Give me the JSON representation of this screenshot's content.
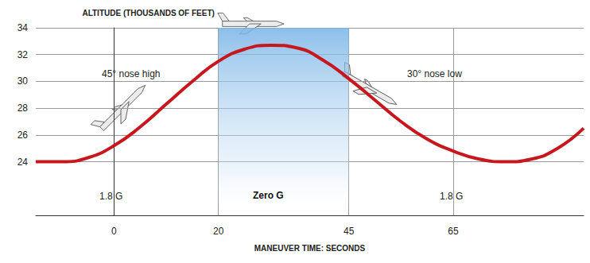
{
  "chart_data": {
    "type": "line",
    "x_label": "MANEUVER TIME: SECONDS",
    "y_label": "ALTITUDE (THOUSANDS OF FEET)",
    "x": [
      -15,
      -10,
      -5,
      0,
      5,
      10,
      15,
      20,
      25,
      30,
      35,
      40,
      45,
      50,
      55,
      60,
      65,
      70,
      75,
      80,
      85,
      90
    ],
    "values": [
      24,
      24,
      24.3,
      25.2,
      26.6,
      28.3,
      30,
      31.5,
      32.4,
      32.7,
      32.5,
      31.6,
      30.2,
      28.6,
      27,
      25.7,
      24.8,
      24.2,
      24,
      24.2,
      25,
      26.5
    ],
    "color": "#c8161d",
    "xlim": [
      -15,
      90
    ],
    "xticks": [
      0,
      20,
      45,
      65
    ],
    "ylim": [
      20,
      34
    ],
    "yticks": [
      24,
      26,
      28,
      30,
      32,
      34
    ],
    "grid": true,
    "shaded_region": {
      "label": "Zero G",
      "from": 20,
      "to": 45
    },
    "annotations": [
      "45° nose high",
      "30° nose low",
      "1.8 G",
      "1.8 G"
    ]
  }
}
